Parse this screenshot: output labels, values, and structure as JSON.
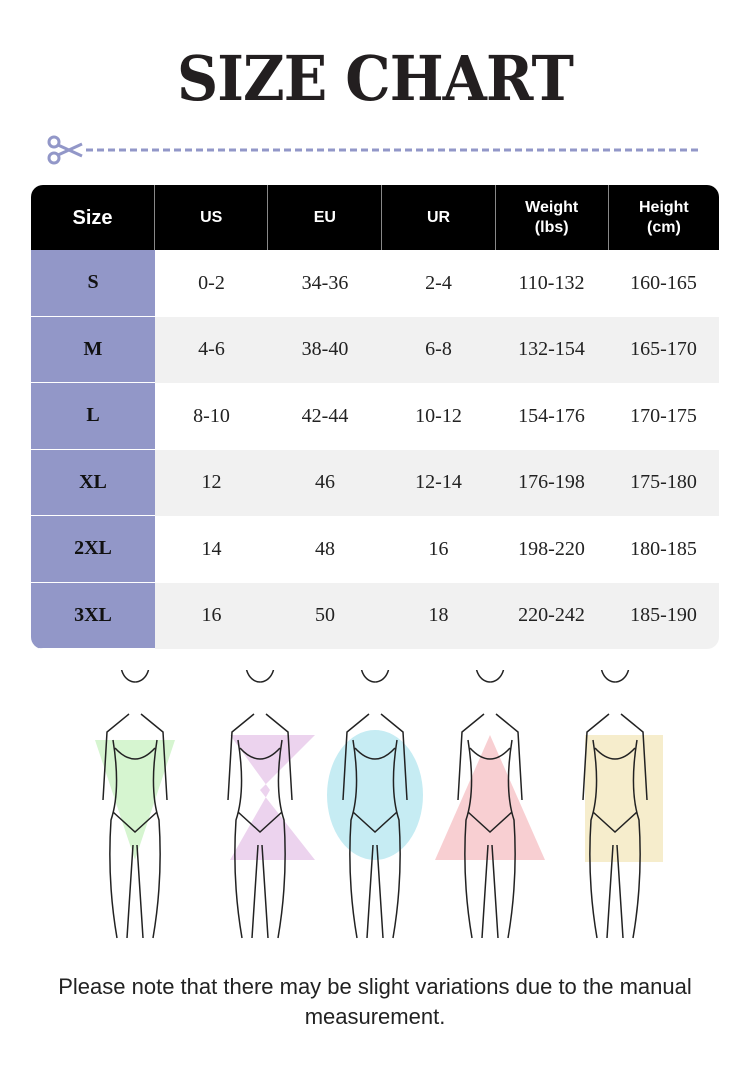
{
  "title": "SIZE CHART",
  "colors": {
    "accent": "#9297c8",
    "header_bg": "#000000",
    "alt_row": "#f1f1f1"
  },
  "table": {
    "headers": [
      "Size",
      "US",
      "EU",
      "UR",
      "Weight\n(lbs)",
      "Height\n(cm)"
    ],
    "rows": [
      [
        "S",
        "0-2",
        "34-36",
        "2-4",
        "110-132",
        "160-165"
      ],
      [
        "M",
        "4-6",
        "38-40",
        "6-8",
        "132-154",
        "165-170"
      ],
      [
        "L",
        "8-10",
        "42-44",
        "10-12",
        "154-176",
        "170-175"
      ],
      [
        "XL",
        "12",
        "46",
        "12-14",
        "176-198",
        "175-180"
      ],
      [
        "2XL",
        "14",
        "48",
        "16",
        "198-220",
        "180-185"
      ],
      [
        "3XL",
        "16",
        "50",
        "18",
        "220-242",
        "185-190"
      ]
    ]
  },
  "body_shapes": [
    {
      "shape": "inverted-triangle",
      "color": "#d6f5d0"
    },
    {
      "shape": "hourglass",
      "color": "#ecd3ee"
    },
    {
      "shape": "oval",
      "color": "#c6ecf3"
    },
    {
      "shape": "triangle",
      "color": "#f8cfd2"
    },
    {
      "shape": "rectangle",
      "color": "#f6edcc"
    }
  ],
  "note": "Please note that there may be slight variations due to the manual measurement."
}
